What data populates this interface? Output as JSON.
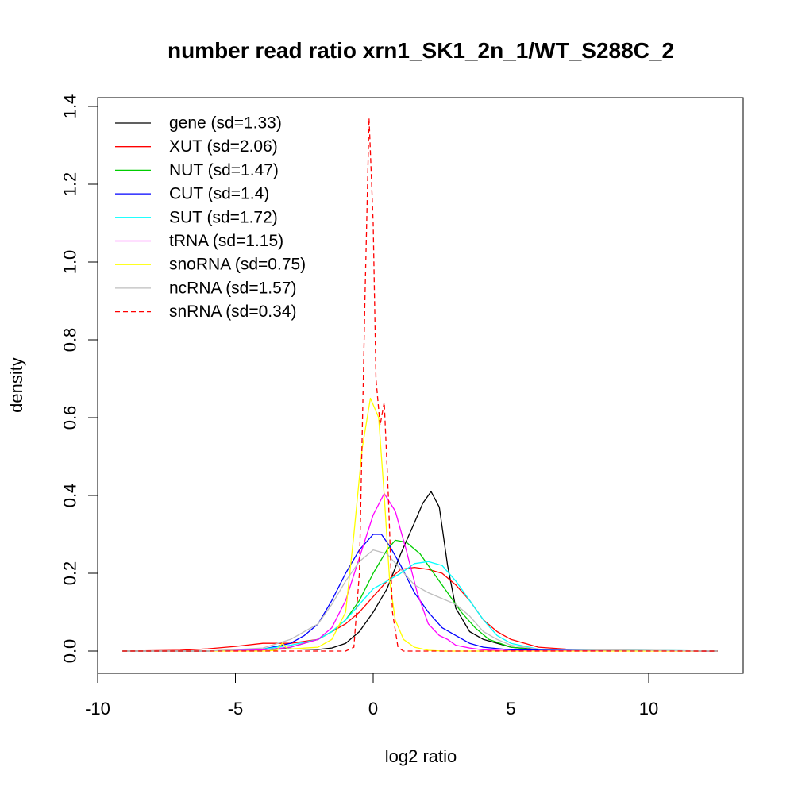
{
  "chart_data": {
    "type": "line",
    "title": "number read ratio xrn1_SK1_2n_1/WT_S288C_2",
    "xlabel": "log2 ratio",
    "ylabel": "density",
    "xlim": [
      -10,
      13
    ],
    "ylim": [
      0,
      1.4
    ],
    "x_ticks": [
      -10,
      -5,
      0,
      5,
      10
    ],
    "x_tick_labels": [
      "-10",
      "-5",
      "0",
      "5",
      "10"
    ],
    "y_ticks": [
      0.0,
      0.2,
      0.4,
      0.6,
      0.8,
      1.0,
      1.2,
      1.4
    ],
    "y_tick_labels": [
      "0.0",
      "0.2",
      "0.4",
      "0.6",
      "0.8",
      "1.0",
      "1.2",
      "1.4"
    ],
    "grid": false,
    "legend_position": "top-left",
    "series": [
      {
        "name": "gene (sd=1.33)",
        "color": "#000000",
        "dash": "solid",
        "points": [
          [
            -9.1,
            0
          ],
          [
            -6,
            0
          ],
          [
            -5,
            0.002
          ],
          [
            -4,
            0.004
          ],
          [
            -3,
            0.006
          ],
          [
            -2,
            0.004
          ],
          [
            -1.5,
            0.008
          ],
          [
            -1,
            0.02
          ],
          [
            -0.5,
            0.05
          ],
          [
            0,
            0.1
          ],
          [
            0.5,
            0.16
          ],
          [
            1,
            0.25
          ],
          [
            1.5,
            0.33
          ],
          [
            1.8,
            0.38
          ],
          [
            2.1,
            0.41
          ],
          [
            2.4,
            0.37
          ],
          [
            2.7,
            0.22
          ],
          [
            3,
            0.11
          ],
          [
            3.5,
            0.05
          ],
          [
            4,
            0.03
          ],
          [
            5,
            0.01
          ],
          [
            6,
            0.004
          ],
          [
            8,
            0.001
          ],
          [
            12.5,
            0
          ]
        ]
      },
      {
        "name": "XUT (sd=2.06)",
        "color": "#ff0000",
        "dash": "solid",
        "points": [
          [
            -9.1,
            0
          ],
          [
            -7,
            0.002
          ],
          [
            -6,
            0.006
          ],
          [
            -5,
            0.012
          ],
          [
            -4,
            0.02
          ],
          [
            -3,
            0.02
          ],
          [
            -2,
            0.03
          ],
          [
            -1.5,
            0.05
          ],
          [
            -1,
            0.07
          ],
          [
            -0.5,
            0.1
          ],
          [
            0,
            0.14
          ],
          [
            0.5,
            0.18
          ],
          [
            1,
            0.21
          ],
          [
            1.5,
            0.215
          ],
          [
            2,
            0.21
          ],
          [
            2.5,
            0.2
          ],
          [
            3,
            0.17
          ],
          [
            3.5,
            0.13
          ],
          [
            4,
            0.08
          ],
          [
            4.5,
            0.05
          ],
          [
            5,
            0.03
          ],
          [
            6,
            0.01
          ],
          [
            7,
            0.005
          ],
          [
            8,
            0.003
          ],
          [
            10,
            0.001
          ],
          [
            12.5,
            0
          ]
        ]
      },
      {
        "name": "NUT (sd=1.47)",
        "color": "#00cd00",
        "dash": "solid",
        "points": [
          [
            -9.1,
            0
          ],
          [
            -6,
            0
          ],
          [
            -4,
            0.003
          ],
          [
            -3,
            0.01
          ],
          [
            -2,
            0.03
          ],
          [
            -1.5,
            0.05
          ],
          [
            -1,
            0.08
          ],
          [
            -0.5,
            0.13
          ],
          [
            0,
            0.2
          ],
          [
            0.5,
            0.26
          ],
          [
            0.8,
            0.285
          ],
          [
            1.2,
            0.28
          ],
          [
            1.7,
            0.25
          ],
          [
            2.2,
            0.2
          ],
          [
            2.7,
            0.15
          ],
          [
            3.2,
            0.1
          ],
          [
            3.7,
            0.06
          ],
          [
            4.2,
            0.03
          ],
          [
            5,
            0.01
          ],
          [
            6,
            0.003
          ],
          [
            12.5,
            0
          ]
        ]
      },
      {
        "name": "CUT (sd=1.4)",
        "color": "#0000ff",
        "dash": "solid",
        "points": [
          [
            -9.1,
            0
          ],
          [
            -6,
            0
          ],
          [
            -4,
            0.005
          ],
          [
            -3,
            0.02
          ],
          [
            -2.5,
            0.04
          ],
          [
            -2,
            0.07
          ],
          [
            -1.5,
            0.13
          ],
          [
            -1,
            0.2
          ],
          [
            -0.5,
            0.26
          ],
          [
            0,
            0.3
          ],
          [
            0.3,
            0.3
          ],
          [
            0.6,
            0.27
          ],
          [
            1,
            0.22
          ],
          [
            1.5,
            0.15
          ],
          [
            2,
            0.1
          ],
          [
            2.5,
            0.06
          ],
          [
            3,
            0.04
          ],
          [
            3.5,
            0.02
          ],
          [
            4,
            0.01
          ],
          [
            5,
            0.003
          ],
          [
            12.5,
            0
          ]
        ]
      },
      {
        "name": "SUT (sd=1.72)",
        "color": "#00ffff",
        "dash": "solid",
        "points": [
          [
            -9.1,
            0
          ],
          [
            -6,
            0
          ],
          [
            -4,
            0.005
          ],
          [
            -3,
            0.015
          ],
          [
            -2,
            0.03
          ],
          [
            -1.5,
            0.05
          ],
          [
            -1,
            0.08
          ],
          [
            -0.5,
            0.12
          ],
          [
            0,
            0.16
          ],
          [
            0.5,
            0.18
          ],
          [
            1,
            0.2
          ],
          [
            1.5,
            0.225
          ],
          [
            2,
            0.23
          ],
          [
            2.5,
            0.22
          ],
          [
            3,
            0.18
          ],
          [
            3.5,
            0.13
          ],
          [
            4,
            0.08
          ],
          [
            4.5,
            0.04
          ],
          [
            5,
            0.02
          ],
          [
            6,
            0.005
          ],
          [
            12.5,
            0
          ]
        ]
      },
      {
        "name": "tRNA (sd=1.15)",
        "color": "#ff00ff",
        "dash": "solid",
        "points": [
          [
            -9.1,
            0
          ],
          [
            -6,
            0
          ],
          [
            -4,
            0.003
          ],
          [
            -3,
            0.01
          ],
          [
            -2,
            0.03
          ],
          [
            -1.5,
            0.06
          ],
          [
            -1,
            0.13
          ],
          [
            -0.5,
            0.24
          ],
          [
            0,
            0.35
          ],
          [
            0.4,
            0.405
          ],
          [
            0.8,
            0.36
          ],
          [
            1.2,
            0.26
          ],
          [
            1.6,
            0.15
          ],
          [
            2,
            0.07
          ],
          [
            2.4,
            0.04
          ],
          [
            2.7,
            0.03
          ],
          [
            3,
            0.015
          ],
          [
            3.5,
            0.008
          ],
          [
            4,
            0.003
          ],
          [
            5,
            0.001
          ],
          [
            12.5,
            0
          ]
        ]
      },
      {
        "name": "snoRNA (sd=0.75)",
        "color": "#ffff00",
        "dash": "solid",
        "points": [
          [
            -9.1,
            0
          ],
          [
            -4,
            0
          ],
          [
            -3.5,
            0.002
          ],
          [
            -3.3,
            0.02
          ],
          [
            -3.1,
            0.005
          ],
          [
            -2,
            0.01
          ],
          [
            -1.5,
            0.03
          ],
          [
            -1,
            0.1
          ],
          [
            -0.7,
            0.3
          ],
          [
            -0.4,
            0.52
          ],
          [
            -0.1,
            0.65
          ],
          [
            0.2,
            0.6
          ],
          [
            0.4,
            0.4
          ],
          [
            0.6,
            0.18
          ],
          [
            0.8,
            0.08
          ],
          [
            1.1,
            0.03
          ],
          [
            1.5,
            0.01
          ],
          [
            2,
            0.002
          ],
          [
            2.5,
            0
          ],
          [
            12.5,
            0
          ]
        ]
      },
      {
        "name": "ncRNA (sd=1.57)",
        "color": "#bebebe",
        "dash": "solid",
        "points": [
          [
            -9.1,
            0
          ],
          [
            -6,
            0
          ],
          [
            -4,
            0.008
          ],
          [
            -3,
            0.03
          ],
          [
            -2,
            0.07
          ],
          [
            -1.5,
            0.12
          ],
          [
            -1,
            0.18
          ],
          [
            -0.5,
            0.23
          ],
          [
            0,
            0.26
          ],
          [
            0.5,
            0.25
          ],
          [
            1,
            0.21
          ],
          [
            1.5,
            0.17
          ],
          [
            2,
            0.15
          ],
          [
            2.5,
            0.135
          ],
          [
            3,
            0.12
          ],
          [
            3.5,
            0.09
          ],
          [
            4,
            0.05
          ],
          [
            4.5,
            0.03
          ],
          [
            5,
            0.015
          ],
          [
            6,
            0.005
          ],
          [
            12.5,
            0
          ]
        ]
      },
      {
        "name": "snRNA (sd=0.34)",
        "color": "#ff0000",
        "dash": "dashed",
        "points": [
          [
            -9.1,
            0
          ],
          [
            -1,
            0
          ],
          [
            -0.7,
            0.01
          ],
          [
            -0.5,
            0.2
          ],
          [
            -0.3,
            0.9
          ],
          [
            -0.15,
            1.37
          ],
          [
            0,
            1.1
          ],
          [
            0.1,
            0.7
          ],
          [
            0.25,
            0.58
          ],
          [
            0.4,
            0.64
          ],
          [
            0.55,
            0.4
          ],
          [
            0.7,
            0.1
          ],
          [
            0.9,
            0.01
          ],
          [
            1.1,
            0
          ],
          [
            12.5,
            0
          ]
        ]
      }
    ]
  }
}
